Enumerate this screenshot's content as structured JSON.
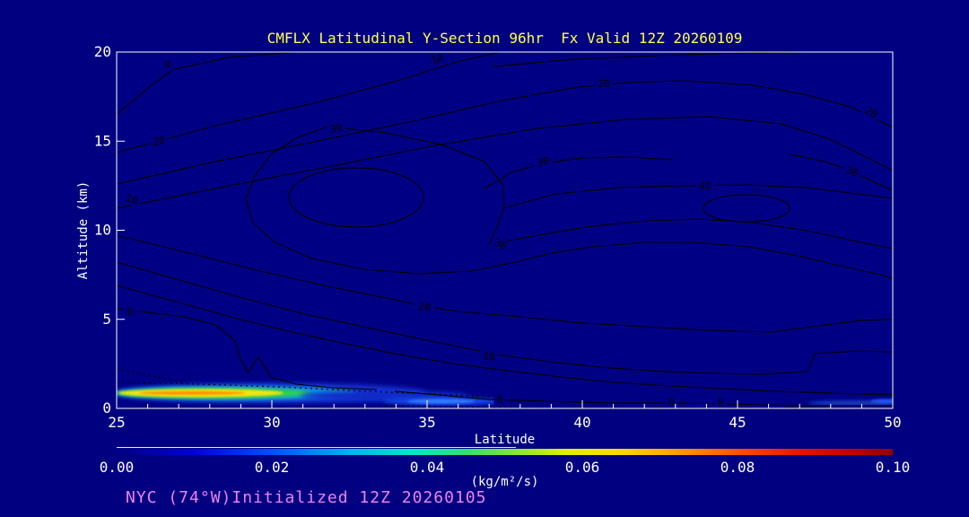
{
  "title": {
    "text": "CMFLX Latitudinal Y-Section 96hr  Fx Valid 12Z 20260109"
  },
  "annotation": {
    "text": "NYC (74°W)Initialized 12Z 20260105"
  },
  "colors": {
    "background": "#000080",
    "plot_fill": "#000084",
    "axis": "#ffffff",
    "title": "#ffff4f",
    "annotation": "#ee82ee",
    "contour": "#000000"
  },
  "axes": {
    "x": {
      "label": "Latitude",
      "range": [
        25,
        50
      ],
      "major_ticks": [
        25,
        30,
        35,
        40,
        45,
        50
      ],
      "minor_step": 1
    },
    "y": {
      "label": "Altitude (km)",
      "range": [
        0,
        20
      ],
      "major_ticks": [
        0,
        5,
        10,
        15,
        20
      ]
    }
  },
  "colorbar": {
    "units": "(kg/m²/s)",
    "min": 0.0,
    "max": 0.1,
    "tick_labels": [
      "0.00",
      "0.02",
      "0.04",
      "0.06",
      "0.08",
      "0.10"
    ],
    "gradient": [
      [
        0,
        "#000080"
      ],
      [
        0.1,
        "#0000d8"
      ],
      [
        0.2,
        "#0050ff"
      ],
      [
        0.3,
        "#00b4f0"
      ],
      [
        0.38,
        "#00e8c8"
      ],
      [
        0.45,
        "#30e070"
      ],
      [
        0.52,
        "#90e830"
      ],
      [
        0.58,
        "#e0f000"
      ],
      [
        0.65,
        "#ffd800"
      ],
      [
        0.72,
        "#ffa000"
      ],
      [
        0.8,
        "#ff5000"
      ],
      [
        0.88,
        "#e81400"
      ],
      [
        0.95,
        "#c00000"
      ],
      [
        1,
        "#900000"
      ]
    ]
  },
  "chart_data": {
    "type": "contour",
    "title": "CMFLX Latitudinal Y-Section 96hr  Fx Valid 12Z 20260109",
    "xlabel": "Latitude",
    "ylabel": "Altitude (km)",
    "x_range": [
      25,
      50
    ],
    "y_range": [
      0,
      20
    ],
    "contour_levels": [
      0,
      10,
      20,
      30,
      40
    ],
    "fill_units": "kg/m²/s",
    "fill_scale": [
      0.0,
      0.1
    ],
    "surface_flux_maximum": {
      "lat": [
        25,
        29
      ],
      "altitude_km": 0.8,
      "approx_value": 0.065
    },
    "contour_lines": [
      {
        "pts": [
          [
            25,
            16.5
          ],
          [
            26.1,
            18.1
          ],
          [
            26.8,
            19
          ],
          [
            28.6,
            19.7
          ],
          [
            30.8,
            20
          ]
        ]
      },
      {
        "pts": [
          [
            25,
            14.36
          ],
          [
            28.18,
            15.87
          ],
          [
            31.36,
            17.13
          ],
          [
            34.25,
            18.49
          ],
          [
            35.84,
            19.4
          ],
          [
            37.34,
            20
          ]
        ]
      },
      {
        "pts": [
          [
            37.14,
            19.19
          ],
          [
            39.74,
            19.6
          ],
          [
            42.43,
            19.8
          ],
          [
            45.23,
            19.95
          ],
          [
            47.25,
            20
          ]
        ]
      },
      {
        "pts": [
          [
            25,
            12.59
          ],
          [
            28.18,
            13.85
          ],
          [
            31.36,
            14.96
          ],
          [
            34.54,
            16.12
          ],
          [
            37.43,
            17.28
          ],
          [
            39.88,
            18.04
          ],
          [
            41.47,
            18.29
          ],
          [
            43.21,
            18.39
          ],
          [
            45.52,
            18.14
          ],
          [
            47.25,
            17.58
          ],
          [
            48.7,
            16.88
          ],
          [
            50,
            15.77
          ]
        ]
      },
      {
        "pts": [
          [
            25,
            11.23
          ],
          [
            28.47,
            12.44
          ],
          [
            31.94,
            13.6
          ],
          [
            35.12,
            14.71
          ],
          [
            38.58,
            15.72
          ],
          [
            41.47,
            16.22
          ],
          [
            44.08,
            16.37
          ],
          [
            46.39,
            15.97
          ],
          [
            47.98,
            15.11
          ],
          [
            49.13,
            14.11
          ],
          [
            50,
            13.35
          ]
        ]
      },
      {
        "pts": [
          [
            31.79,
            15.82
          ],
          [
            30.78,
            15.16
          ],
          [
            29.97,
            14.26
          ],
          [
            29.45,
            13.05
          ],
          [
            29.16,
            11.74
          ],
          [
            29.39,
            10.43
          ],
          [
            30.09,
            9.32
          ],
          [
            31.3,
            8.41
          ],
          [
            32.95,
            7.81
          ],
          [
            34.68,
            7.56
          ],
          [
            36.42,
            7.71
          ],
          [
            37.86,
            8.21
          ],
          [
            39.02,
            8.72
          ],
          [
            40.32,
            9.07
          ],
          [
            41.99,
            9.32
          ],
          [
            43.64,
            9.32
          ],
          [
            45.38,
            9.07
          ],
          [
            46.97,
            8.56
          ],
          [
            48.41,
            7.96
          ],
          [
            49.57,
            7.51
          ],
          [
            50,
            7.3
          ]
        ]
      },
      {
        "pts": [
          [
            31.79,
            15.82
          ],
          [
            33.67,
            15.47
          ],
          [
            35.55,
            14.76
          ],
          [
            36.85,
            13.85
          ],
          [
            37.43,
            12.59
          ],
          [
            37.49,
            11.33
          ],
          [
            37.23,
            10.08
          ],
          [
            37,
            9.22
          ]
        ]
      },
      {
        "pts": [
          [
            37,
            9.22
          ],
          [
            38.58,
            9.72
          ],
          [
            40.32,
            10.23
          ],
          [
            42.05,
            10.53
          ],
          [
            43.79,
            10.63
          ],
          [
            45.52,
            10.43
          ],
          [
            47.25,
            9.97
          ],
          [
            48.7,
            9.42
          ],
          [
            50,
            8.97
          ]
        ]
      },
      {
        "pts": [
          [
            46.68,
            14.26
          ],
          [
            47.83,
            13.85
          ],
          [
            48.7,
            13.3
          ],
          [
            49.42,
            12.69
          ],
          [
            50,
            12.24
          ]
        ]
      },
      {
        "pts": [
          [
            37.43,
            11.23
          ],
          [
            39.16,
            12.04
          ],
          [
            41.18,
            12.39
          ],
          [
            43.21,
            12.49
          ],
          [
            45.23,
            12.54
          ],
          [
            47.25,
            12.39
          ],
          [
            48.84,
            12.04
          ],
          [
            50,
            11.79
          ]
        ]
      },
      {
        "pts": [
          [
            36.85,
            12.34
          ],
          [
            37.72,
            13.25
          ],
          [
            38.73,
            13.75
          ],
          [
            40.03,
            14.06
          ],
          [
            41.47,
            14.11
          ],
          [
            42.92,
            13.95
          ]
        ]
      },
      {
        "pts": [
          [
            25,
            5.59
          ],
          [
            26.01,
            5.39
          ],
          [
            27.17,
            5.14
          ],
          [
            28.18,
            4.69
          ],
          [
            28.82,
            3.78
          ],
          [
            28.99,
            2.77
          ],
          [
            29.22,
            2.02
          ],
          [
            29.57,
            2.87
          ],
          [
            29.97,
            1.76
          ],
          [
            30.78,
            1.36
          ],
          [
            31.94,
            1.16
          ],
          [
            33.38,
            1.06
          ]
        ]
      },
      {
        "pts": [
          [
            25,
            9.72
          ],
          [
            27.31,
            8.72
          ],
          [
            29.62,
            7.71
          ],
          [
            31.94,
            6.8
          ],
          [
            33.96,
            6.1
          ],
          [
            34.91,
            5.74
          ],
          [
            35.98,
            5.44
          ],
          [
            38.01,
            5.14
          ],
          [
            40.03,
            4.79
          ],
          [
            42.05,
            4.58
          ],
          [
            44.08,
            4.38
          ],
          [
            46.1,
            4.28
          ],
          [
            47.83,
            4.69
          ],
          [
            48.99,
            4.94
          ],
          [
            50,
            4.99
          ]
        ]
      },
      {
        "pts": [
          [
            25,
            8.21
          ],
          [
            27.02,
            7.2
          ],
          [
            29.05,
            6.2
          ],
          [
            31.07,
            5.29
          ],
          [
            33.09,
            4.53
          ],
          [
            35.12,
            3.78
          ],
          [
            36.56,
            3.27
          ],
          [
            37.43,
            2.97
          ],
          [
            39.16,
            2.57
          ],
          [
            40.9,
            2.27
          ],
          [
            42.63,
            2.07
          ],
          [
            44.37,
            1.96
          ],
          [
            45.81,
            1.91
          ],
          [
            47.25,
            2.07
          ],
          [
            47.49,
            3.07
          ],
          [
            48.84,
            3.22
          ],
          [
            50,
            3.17
          ]
        ]
      },
      {
        "pts": [
          [
            25,
            6.9
          ],
          [
            26.88,
            6
          ],
          [
            28.76,
            5.09
          ],
          [
            30.64,
            4.28
          ],
          [
            32.51,
            3.58
          ],
          [
            34.25,
            2.97
          ],
          [
            35.98,
            2.47
          ],
          [
            37.57,
            2.12
          ],
          [
            39.31,
            1.76
          ],
          [
            41.04,
            1.46
          ],
          [
            42.77,
            1.26
          ],
          [
            44.51,
            1.11
          ],
          [
            46.24,
            0.96
          ],
          [
            47.98,
            0.86
          ],
          [
            50,
            0.76
          ]
        ]
      },
      {
        "pts": [
          [
            33.96,
            0.96
          ],
          [
            35.69,
            0.71
          ],
          [
            36.99,
            0.5
          ],
          [
            38.87,
            0.4
          ],
          [
            40.9,
            0.3
          ],
          [
            42.92,
            0.3
          ],
          [
            44.94,
            0.25
          ],
          [
            46.68,
            0.15
          ],
          [
            48.41,
            0.15
          ],
          [
            50,
            0.15
          ]
        ]
      }
    ],
    "dotted_lines": [
      {
        "pts": [
          [
            25,
            1.46
          ],
          [
            26.73,
            1.41
          ],
          [
            28.47,
            1.31
          ],
          [
            30.2,
            1.21
          ],
          [
            31.94,
            1.06
          ],
          [
            33.67,
            0.91
          ],
          [
            35.12,
            0.81
          ],
          [
            36.42,
            0.71
          ],
          [
            37.23,
            0.6
          ]
        ]
      },
      {
        "pts": [
          [
            25,
            2.22
          ],
          [
            26.01,
            1.86
          ],
          [
            27.17,
            1.46
          ]
        ]
      },
      {
        "pts": [
          [
            33.67,
            0.15
          ],
          [
            36.27,
            0.08
          ],
          [
            38.58,
            0.02
          ]
        ]
      }
    ],
    "ellipse_contours": [
      {
        "cx": 32.72,
        "cy": 11.84,
        "rx": 2.17,
        "ry": 1.66
      },
      {
        "cx": 45.29,
        "cy": 11.23,
        "rx": 1.39,
        "ry": 0.76
      }
    ],
    "labels": [
      {
        "t": "0",
        "x": 26.65,
        "y": 19.29,
        "r": 0
      },
      {
        "t": "10",
        "x": 35.32,
        "y": 19.6,
        "r": -12
      },
      {
        "t": "20",
        "x": 26.36,
        "y": 15.01,
        "r": -10
      },
      {
        "t": "30",
        "x": 32.08,
        "y": 15.72,
        "r": -12
      },
      {
        "t": "20",
        "x": 40.69,
        "y": 18.24,
        "r": 0
      },
      {
        "t": "20",
        "x": 49.31,
        "y": 16.62,
        "r": 28
      },
      {
        "t": "30",
        "x": 38.73,
        "y": 13.85,
        "r": -14
      },
      {
        "t": "30",
        "x": 48.7,
        "y": 13.3,
        "r": 22
      },
      {
        "t": "40",
        "x": 43.96,
        "y": 12.49,
        "r": 0
      },
      {
        "t": "10",
        "x": 25.49,
        "y": 11.74,
        "r": 18
      },
      {
        "t": "30",
        "x": 37.37,
        "y": 9.22,
        "r": 25
      },
      {
        "t": "0",
        "x": 25.43,
        "y": 5.44,
        "r": 0
      },
      {
        "t": "20",
        "x": 34.91,
        "y": 5.69,
        "r": 8
      },
      {
        "t": "10",
        "x": 36.99,
        "y": 2.92,
        "r": 8
      },
      {
        "t": "0",
        "x": 37.34,
        "y": 0.5,
        "r": 0
      },
      {
        "t": "0",
        "x": 42.86,
        "y": 0.35,
        "r": 0
      },
      {
        "t": "0",
        "x": 44.45,
        "y": 0.35,
        "r": 0
      }
    ],
    "fill_blobs": [
      {
        "cx": 29.91,
        "cy": 0.86,
        "rx": 5.06,
        "ry": 0.55,
        "c": "#1b35d8",
        "blur": 3
      },
      {
        "cx": 28.82,
        "cy": 0.86,
        "rx": 3.9,
        "ry": 0.4,
        "c": "#0a9fe0",
        "blur": 2.2
      },
      {
        "cx": 28.12,
        "cy": 0.86,
        "rx": 3.12,
        "ry": 0.3,
        "c": "#2fd050",
        "blur": 1.8
      },
      {
        "cx": 27.72,
        "cy": 0.86,
        "rx": 2.66,
        "ry": 0.23,
        "c": "#f5e50f",
        "blur": 1.4
      },
      {
        "cx": 27.43,
        "cy": 0.86,
        "rx": 1.73,
        "ry": 0.09,
        "c": "#ff8800",
        "blur": 1
      },
      {
        "cx": 33.67,
        "cy": 0.71,
        "rx": 2.75,
        "ry": 0.28,
        "c": "#0f2cc8",
        "blur": 2.6
      },
      {
        "cx": 35.55,
        "cy": 0.4,
        "rx": 1.97,
        "ry": 0.23,
        "c": "#1545e6",
        "blur": 2
      },
      {
        "cx": 35.46,
        "cy": 0.4,
        "rx": 1.1,
        "ry": 0.13,
        "c": "#2e7bff",
        "blur": 1.4
      },
      {
        "cx": 48.76,
        "cy": 0.3,
        "rx": 1.5,
        "ry": 0.15,
        "c": "#1238c8",
        "blur": 1.8
      },
      {
        "cx": 49.86,
        "cy": 0.4,
        "rx": 0.58,
        "ry": 0.13,
        "c": "#2255ee",
        "blur": 1.4
      }
    ]
  }
}
